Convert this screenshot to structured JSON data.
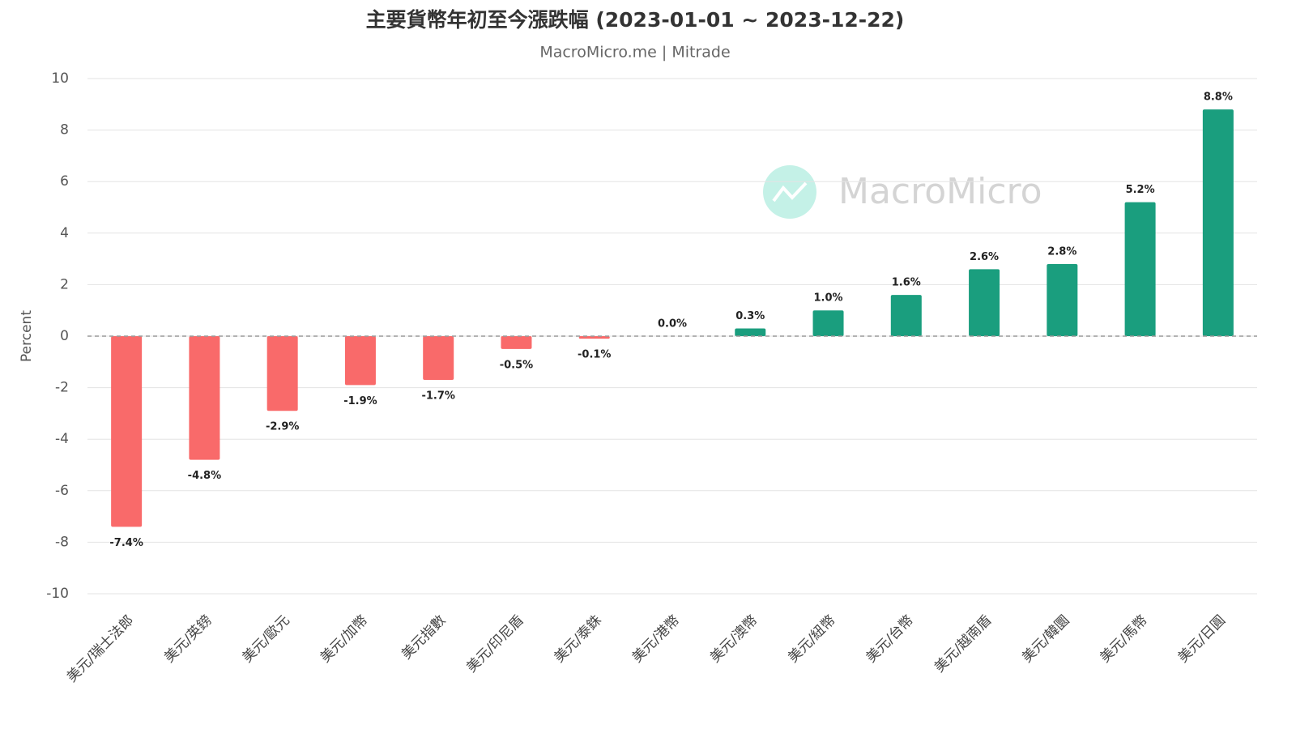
{
  "chart_data": {
    "type": "bar",
    "title": "主要貨幣年初至今漲跌幅 (2023-01-01 ~ 2023-12-22)",
    "subtitle": "MacroMicro.me | Mitrade",
    "watermark": "MacroMicro",
    "y_label": "Percent",
    "categories": [
      "美元/瑞士法郎",
      "美元/英鎊",
      "美元/歐元",
      "美元/加幣",
      "美元指數",
      "美元/印尼盾",
      "美元/泰銖",
      "美元/港幣",
      "美元/澳幣",
      "美元/紐幣",
      "美元/台幣",
      "美元/越南盾",
      "美元/韓圜",
      "美元/馬幣",
      "美元/日圓"
    ],
    "values": [
      -7.4,
      -4.8,
      -2.9,
      -1.9,
      -1.7,
      -0.5,
      -0.1,
      0.0,
      0.3,
      1.0,
      1.6,
      2.6,
      2.8,
      5.2,
      8.8
    ],
    "value_labels": [
      "-7.4%",
      "-4.8%",
      "-2.9%",
      "-1.9%",
      "-1.7%",
      "-0.5%",
      "-0.1%",
      "0.0%",
      "0.3%",
      "1.0%",
      "1.6%",
      "2.6%",
      "2.8%",
      "5.2%",
      "8.8%"
    ],
    "color_positive": "#1a9e7e",
    "color_negative": "#f96a6a",
    "ylim": [
      -10,
      10
    ],
    "yticks": [
      -10,
      -8,
      -6,
      -4,
      -2,
      0,
      2,
      4,
      6,
      8,
      10
    ],
    "grid": true
  }
}
